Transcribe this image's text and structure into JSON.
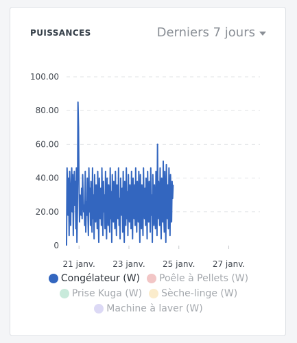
{
  "card": {
    "title": "PUISSANCES",
    "range_label": "Derniers 7 jours"
  },
  "chart_data": {
    "type": "line",
    "xlabel": "",
    "ylabel": "",
    "ylim": [
      0,
      100
    ],
    "y_ticks": [
      "0",
      "20.00",
      "40.00",
      "60.00",
      "80.00",
      "100.00"
    ],
    "x_ticks": [
      "21 janv.",
      "23 janv.",
      "25 janv.",
      "27 janv."
    ],
    "x_range": [
      "2025-01-20T12:00",
      "2025-01-28T06:00"
    ],
    "grid": true,
    "legend_position": "bottom",
    "series": [
      {
        "name": "Congélateur (W)",
        "color": "#3366bf",
        "visible": true,
        "x_start": "2025-01-20T12:00",
        "x_step_hours": 0.5,
        "values": [
          0,
          46,
          32,
          18,
          40,
          6,
          44,
          28,
          12,
          36,
          46,
          20,
          42,
          6,
          30,
          44,
          24,
          38,
          10,
          46,
          2,
          22,
          85,
          70,
          36,
          14,
          30,
          26,
          18,
          34,
          16,
          42,
          28,
          20,
          24,
          12,
          44,
          8,
          26,
          18,
          40,
          22,
          6,
          46,
          20,
          34,
          12,
          38,
          24,
          8,
          46,
          16,
          30,
          4,
          42,
          22,
          14,
          36,
          28,
          10,
          44,
          20,
          2,
          40,
          26,
          16,
          34,
          12,
          46,
          24,
          6,
          38,
          20,
          30,
          10,
          44,
          18,
          4,
          40,
          28,
          12,
          36,
          22,
          8,
          46,
          16,
          32,
          2,
          42,
          26,
          14,
          38,
          20,
          10,
          44,
          22,
          6,
          36,
          30,
          16,
          46,
          12,
          28,
          4,
          40,
          24,
          18,
          34,
          8,
          44,
          20,
          2,
          38,
          26,
          12,
          46,
          16,
          32,
          6,
          42,
          22,
          14,
          36,
          28,
          10,
          44,
          18,
          4,
          40,
          24,
          16,
          36,
          12,
          46,
          20,
          8,
          38,
          30,
          14,
          44,
          22,
          2,
          42,
          26,
          10,
          36,
          18,
          6,
          46,
          24,
          16,
          34,
          12,
          40,
          28,
          4,
          44,
          20,
          14,
          38,
          22,
          8,
          46,
          18,
          30,
          2,
          42,
          26,
          12,
          36,
          20,
          10,
          44,
          24,
          6,
          60,
          16,
          38,
          28,
          12,
          46,
          20,
          4,
          40,
          26,
          14,
          50,
          18,
          8,
          44,
          22,
          2,
          48,
          30,
          16,
          36,
          10,
          46,
          24,
          6,
          42,
          20,
          14,
          38,
          28,
          36
        ]
      },
      {
        "name": "Poêle à Pellets (W)",
        "color": "#f2c6c6",
        "visible": false,
        "values": []
      },
      {
        "name": "Prise Kuga (W)",
        "color": "#c8eadb",
        "visible": false,
        "values": []
      },
      {
        "name": "Sèche-linge (W)",
        "color": "#fbeccc",
        "visible": false,
        "values": []
      },
      {
        "name": "Machine à laver (W)",
        "color": "#dcd9f5",
        "visible": false,
        "values": []
      }
    ]
  }
}
